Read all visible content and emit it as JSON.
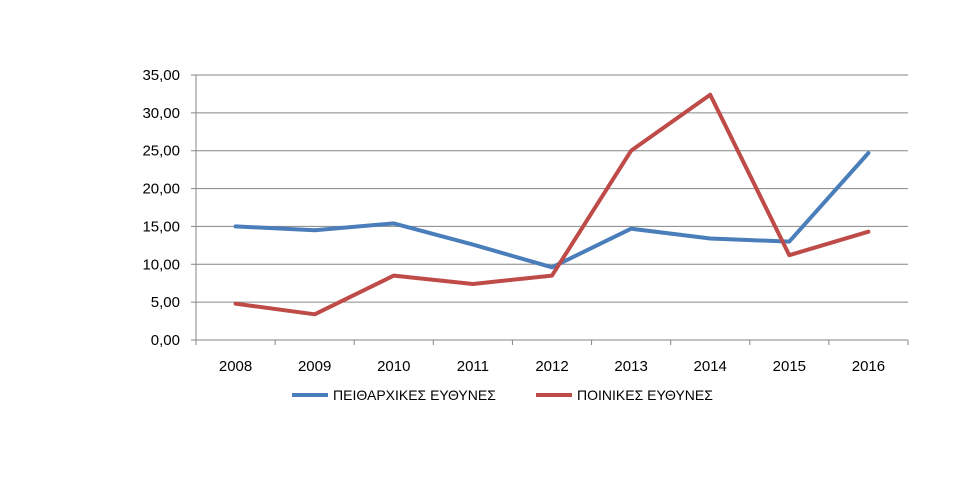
{
  "chart_data": {
    "type": "line",
    "title": "",
    "xlabel": "",
    "ylabel": "",
    "categories": [
      "2008",
      "2009",
      "2010",
      "2011",
      "2012",
      "2013",
      "2014",
      "2015",
      "2016"
    ],
    "ylim": [
      0,
      35
    ],
    "yticks": [
      0,
      5,
      10,
      15,
      20,
      25,
      30,
      35
    ],
    "ytick_labels": [
      "0,00",
      "5,00",
      "10,00",
      "15,00",
      "20,00",
      "25,00",
      "30,00",
      "35,00"
    ],
    "grid": true,
    "legend_position": "bottom",
    "series": [
      {
        "name": "ΠΕΙΘΑΡΧΙΚΕΣ ΕΥΘΥΝΕΣ",
        "color": "#4a7ebb",
        "values": [
          15.0,
          14.5,
          15.4,
          12.6,
          9.6,
          14.7,
          13.4,
          13.0,
          24.7
        ]
      },
      {
        "name": "ΠΟΙΝΙΚΕΣ ΕΥΘΥΝΕΣ",
        "color": "#be4b48",
        "values": [
          4.8,
          3.4,
          8.5,
          7.4,
          8.5,
          25.0,
          32.4,
          11.2,
          14.3
        ]
      }
    ]
  }
}
